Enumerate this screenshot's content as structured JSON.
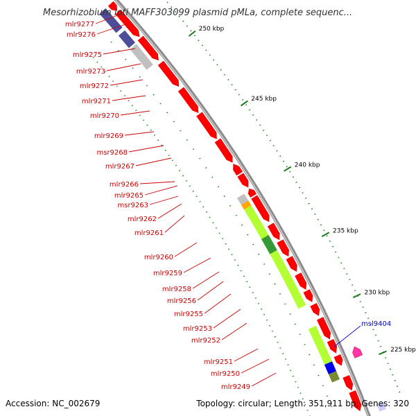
{
  "title": "Mesorhizobium loti MAFF303099 plasmid pMLa, complete sequenc...",
  "footer": {
    "accession": "Accession: NC_002679",
    "stats": "Topology: circular; Length: 351,911 bp; Genes: 320"
  },
  "scale_labels": [
    "250 kbp",
    "245 kbp",
    "240 kbp",
    "235 kbp",
    "230 kbp",
    "225 kbp"
  ],
  "gene_labels_left": [
    "mlr9277",
    "mlr9276",
    "mlr9275",
    "mlr9273",
    "mlr9272",
    "mlr9271",
    "mlr9270",
    "mlr9269",
    "msr9268",
    "mlr9267",
    "mlr9266",
    "mlr9265",
    "msr9263",
    "mlr9262",
    "mlr9261",
    "mlr9260",
    "mlr9259",
    "mlr9258",
    "mlr9256",
    "mlr9255",
    "mlr9253",
    "mlr9252",
    "mlr9251",
    "mlr9250",
    "mlr9249"
  ],
  "gene_labels_right": [
    "msl9404"
  ],
  "colors": {
    "gene_red": "#ff0000",
    "backbone": "#8c8c8c",
    "cog_lime": "#b3ff33",
    "cog_green": "#339933",
    "cog_olive": "#7a8a33",
    "cog_purple": "#4d4d99",
    "cog_gray": "#c0c0c0",
    "cog_orange": "#ffa500",
    "cog_blue": "#0000ee",
    "cog_magenta": "#ff33aa",
    "tick_green": "#1a7a1a",
    "label_red": "#cc0000",
    "label_blue": "#0000cc"
  }
}
